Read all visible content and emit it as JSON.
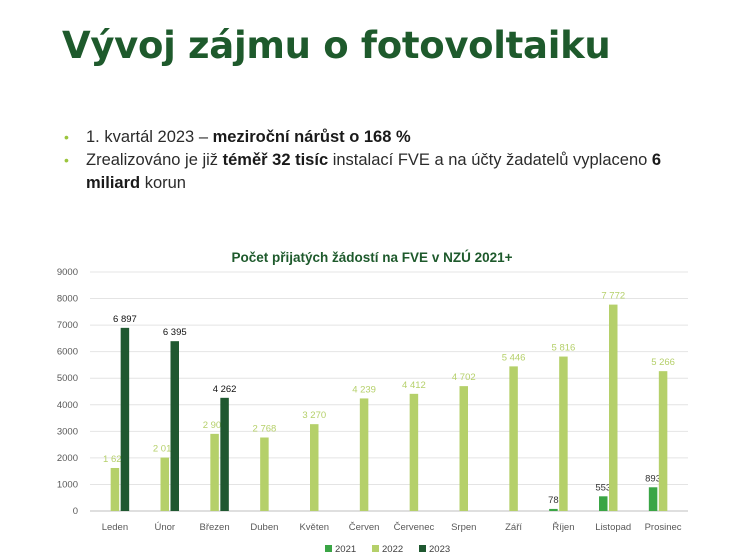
{
  "slide": {
    "title": "Vývoj zájmu o fotovoltaiku",
    "bullets": [
      [
        {
          "t": "1. kvartál 2023 – ",
          "b": false
        },
        {
          "t": "meziroční nárůst o 168 %",
          "b": true
        }
      ],
      [
        {
          "t": "Zrealizováno je již ",
          "b": false
        },
        {
          "t": "téměř 32 tisíc",
          "b": true
        },
        {
          "t": " instalací FVE a na účty žadatelů vyplaceno ",
          "b": false
        },
        {
          "t": "6 miliard",
          "b": true
        },
        {
          "t": " korun",
          "b": false
        }
      ]
    ]
  },
  "colors": {
    "title": "#1e5a2c",
    "bullet": "#9bc53d",
    "s2021": "#3aa545",
    "s2022": "#b5d06a",
    "s2023": "#1f5830",
    "grid": "#e4e4e4"
  },
  "chart_data": {
    "type": "bar",
    "title": "Počet přijatých žádostí na FVE v NZÚ 2021+",
    "categories": [
      "Leden",
      "Únor",
      "Březen",
      "Duben",
      "Květen",
      "Červen",
      "Červenec",
      "Srpen",
      "Září",
      "Říjen",
      "Listopad",
      "Prosinec"
    ],
    "series": [
      {
        "name": "2021",
        "values": [
          null,
          null,
          null,
          null,
          null,
          null,
          null,
          null,
          null,
          78,
          553,
          893
        ],
        "labels": [
          "",
          "",
          "",
          "",
          "",
          "",
          "",
          "",
          "",
          "78",
          "553",
          "893"
        ]
      },
      {
        "name": "2022",
        "values": [
          1620,
          2012,
          2905,
          2768,
          3270,
          4239,
          4412,
          4702,
          5446,
          5816,
          7772,
          5266
        ],
        "labels": [
          "1 620",
          "2 012",
          "2 905",
          "2 768",
          "3 270",
          "4 239",
          "4 412",
          "4 702",
          "5 446",
          "5 816",
          "7 772",
          "5 266"
        ]
      },
      {
        "name": "2023",
        "values": [
          6897,
          6395,
          4262,
          null,
          null,
          null,
          null,
          null,
          null,
          null,
          null,
          null
        ],
        "labels": [
          "6 897",
          "6 395",
          "4 262",
          "",
          "",
          "",
          "",
          "",
          "",
          "",
          "",
          ""
        ]
      }
    ],
    "ylim": [
      0,
      9000
    ],
    "yticks": [
      "0",
      "1000",
      "2000",
      "3000",
      "4000",
      "5000",
      "6000",
      "7000",
      "8000",
      "9000"
    ],
    "grid": true,
    "legend_position": "bottom"
  }
}
